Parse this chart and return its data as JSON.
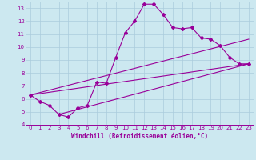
{
  "bg_color": "#cce8f0",
  "grid_color": "#aaccdd",
  "line_color": "#990099",
  "xlabel": "Windchill (Refroidissement éolien,°C)",
  "xlim": [
    -0.5,
    23.5
  ],
  "ylim": [
    4,
    13.5
  ],
  "xticks": [
    0,
    1,
    2,
    3,
    4,
    5,
    6,
    7,
    8,
    9,
    10,
    11,
    12,
    13,
    14,
    15,
    16,
    17,
    18,
    19,
    20,
    21,
    22,
    23
  ],
  "yticks": [
    4,
    5,
    6,
    7,
    8,
    9,
    10,
    11,
    12,
    13
  ],
  "series1_x": [
    0,
    1,
    2,
    3,
    4,
    5,
    6,
    7,
    8,
    9,
    10,
    11,
    12,
    13,
    14,
    15,
    16,
    17,
    18,
    19,
    20,
    21,
    22,
    23
  ],
  "series1_y": [
    6.3,
    5.8,
    5.5,
    4.8,
    4.6,
    5.3,
    5.5,
    7.3,
    7.2,
    9.2,
    11.1,
    12.0,
    13.3,
    13.3,
    12.5,
    11.5,
    11.4,
    11.5,
    10.7,
    10.6,
    10.1,
    9.2,
    8.7,
    8.7
  ],
  "line2_x": [
    0,
    23
  ],
  "line2_y": [
    6.3,
    8.7
  ],
  "line3_x": [
    0,
    23
  ],
  "line3_y": [
    6.3,
    10.6
  ],
  "line4_x": [
    3,
    23
  ],
  "line4_y": [
    4.8,
    8.7
  ]
}
